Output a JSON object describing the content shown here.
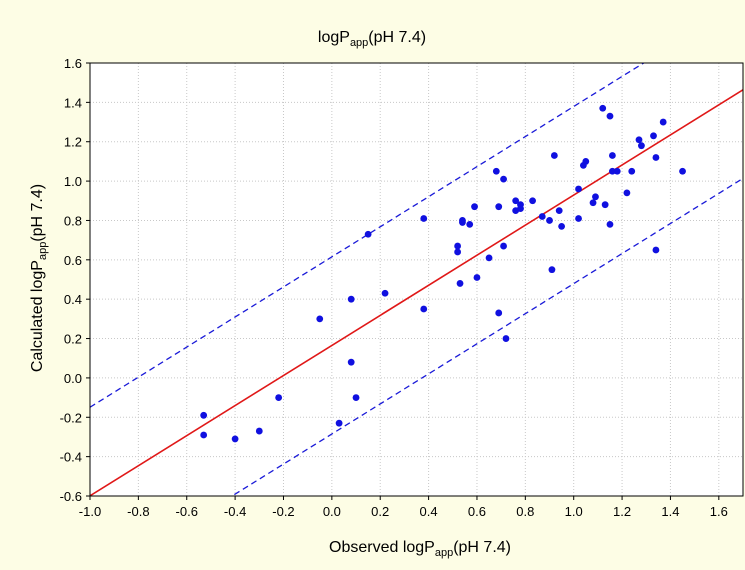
{
  "chart_data": {
    "type": "scatter",
    "title": {
      "main": "logP",
      "sub": "app",
      "rest": "(pH 7.4)"
    },
    "xlabel": {
      "main": "Observed logP",
      "sub": "app",
      "rest": "(pH 7.4)"
    },
    "ylabel": {
      "main": "Calculated logP",
      "sub": "app",
      "rest": "(pH 7.4)"
    },
    "xlim": [
      -1.0,
      1.7
    ],
    "ylim": [
      -0.6,
      1.6
    ],
    "xticks": [
      "-1.0",
      "-0.8",
      "-0.6",
      "-0.4",
      "-0.2",
      "0.0",
      "0.2",
      "0.4",
      "0.6",
      "0.8",
      "1.0",
      "1.2",
      "1.4",
      "1.6"
    ],
    "yticks": [
      "-0.6",
      "-0.4",
      "-0.2",
      "0.0",
      "0.2",
      "0.4",
      "0.6",
      "0.8",
      "1.0",
      "1.2",
      "1.4",
      "1.6"
    ],
    "grid": true,
    "colors": {
      "points": "#1010e0",
      "fit": "#e01818",
      "confidence": "#1a1ad8",
      "background": "#fdfde5",
      "plot": "#ffffff"
    },
    "fit_line": {
      "slope": 0.764,
      "intercept": 0.165
    },
    "confidence_band": {
      "offset": 0.45
    },
    "points": [
      [
        -0.53,
        -0.19
      ],
      [
        -0.53,
        -0.29
      ],
      [
        -0.4,
        -0.31
      ],
      [
        -0.3,
        -0.27
      ],
      [
        -0.22,
        -0.1
      ],
      [
        -0.05,
        0.3
      ],
      [
        0.03,
        -0.23
      ],
      [
        0.08,
        0.4
      ],
      [
        0.08,
        0.08
      ],
      [
        0.1,
        -0.1
      ],
      [
        0.15,
        0.73
      ],
      [
        0.22,
        0.43
      ],
      [
        0.38,
        0.35
      ],
      [
        0.38,
        0.81
      ],
      [
        0.52,
        0.67
      ],
      [
        0.52,
        0.64
      ],
      [
        0.53,
        0.48
      ],
      [
        0.54,
        0.79
      ],
      [
        0.54,
        0.8
      ],
      [
        0.57,
        0.78
      ],
      [
        0.59,
        0.87
      ],
      [
        0.6,
        0.51
      ],
      [
        0.65,
        0.61
      ],
      [
        0.68,
        1.05
      ],
      [
        0.69,
        0.87
      ],
      [
        0.69,
        0.33
      ],
      [
        0.71,
        1.01
      ],
      [
        0.71,
        0.67
      ],
      [
        0.72,
        0.2
      ],
      [
        0.76,
        0.85
      ],
      [
        0.76,
        0.9
      ],
      [
        0.78,
        0.86
      ],
      [
        0.78,
        0.88
      ],
      [
        0.83,
        0.9
      ],
      [
        0.87,
        0.82
      ],
      [
        0.9,
        0.8
      ],
      [
        0.91,
        0.55
      ],
      [
        0.92,
        1.13
      ],
      [
        0.94,
        0.85
      ],
      [
        0.95,
        0.77
      ],
      [
        1.02,
        0.96
      ],
      [
        1.02,
        0.81
      ],
      [
        1.04,
        1.08
      ],
      [
        1.05,
        1.1
      ],
      [
        1.08,
        0.89
      ],
      [
        1.09,
        0.92
      ],
      [
        1.12,
        1.37
      ],
      [
        1.13,
        0.88
      ],
      [
        1.15,
        1.33
      ],
      [
        1.15,
        0.78
      ],
      [
        1.16,
        1.05
      ],
      [
        1.16,
        1.13
      ],
      [
        1.18,
        1.05
      ],
      [
        1.22,
        0.94
      ],
      [
        1.24,
        1.05
      ],
      [
        1.27,
        1.21
      ],
      [
        1.28,
        1.18
      ],
      [
        1.33,
        1.23
      ],
      [
        1.34,
        0.65
      ],
      [
        1.34,
        1.12
      ],
      [
        1.37,
        1.3
      ],
      [
        1.45,
        1.05
      ]
    ]
  }
}
